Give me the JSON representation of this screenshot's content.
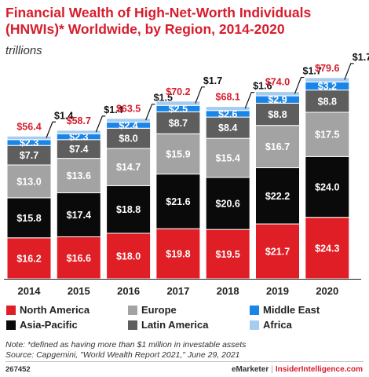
{
  "title": "Financial Wealth of High-Net-Worth Individuals (HNWIs)* Worldwide, by Region, 2014-2020",
  "subtitle": "trillions",
  "chart_data": {
    "type": "bar",
    "stacked": true,
    "categories": [
      "2014",
      "2015",
      "2016",
      "2017",
      "2018",
      "2019",
      "2020"
    ],
    "series": [
      {
        "name": "North America",
        "color": "#e01e25",
        "values": [
          16.2,
          16.6,
          18.0,
          19.8,
          19.5,
          21.7,
          24.3
        ],
        "labels": [
          "$16.2",
          "$16.6",
          "$18.0",
          "$19.8",
          "$19.5",
          "$21.7",
          "$24.3"
        ]
      },
      {
        "name": "Asia-Pacific",
        "color": "#0a0a0a",
        "values": [
          15.8,
          17.4,
          18.8,
          21.6,
          20.6,
          22.2,
          24.0
        ],
        "labels": [
          "$15.8",
          "$17.4",
          "$18.8",
          "$21.6",
          "$20.6",
          "$22.2",
          "$24.0"
        ]
      },
      {
        "name": "Europe",
        "color": "#a3a3a3",
        "values": [
          13.0,
          13.6,
          14.7,
          15.9,
          15.4,
          16.7,
          17.5
        ],
        "labels": [
          "$13.0",
          "$13.6",
          "$14.7",
          "$15.9",
          "$15.4",
          "$16.7",
          "$17.5"
        ]
      },
      {
        "name": "Latin America",
        "color": "#5e5e5e",
        "values": [
          7.7,
          7.4,
          8.0,
          8.7,
          8.4,
          8.8,
          8.8
        ],
        "labels": [
          "$7.7",
          "$7.4",
          "$8.0",
          "$8.7",
          "$8.4",
          "$8.8",
          "$8.8"
        ]
      },
      {
        "name": "Middle East",
        "color": "#1a85e8",
        "values": [
          2.3,
          2.3,
          2.4,
          2.5,
          2.6,
          2.9,
          3.2
        ],
        "labels": [
          "$2.3",
          "$2.3",
          "$2.4",
          "$2.5",
          "$2.6",
          "$2.9",
          "$3.2"
        ]
      },
      {
        "name": "Africa",
        "color": "#a6cdf0",
        "values": [
          1.4,
          1.4,
          1.5,
          1.7,
          1.6,
          1.7,
          1.7
        ],
        "labels": [
          "$1.4",
          "$1.4",
          "$1.5",
          "$1.7",
          "$1.6",
          "$1.7",
          "$1.7"
        ]
      }
    ],
    "totals": [
      56.4,
      58.7,
      63.5,
      70.2,
      68.1,
      74.0,
      79.6
    ],
    "total_labels": [
      "$56.4",
      "$58.7",
      "$63.5",
      "$70.2",
      "$68.1",
      "$74.0",
      "$79.6"
    ],
    "total_color": "#d71d2c",
    "ylim": [
      0,
      81
    ],
    "grid": false
  },
  "legend": [
    {
      "label": "North America",
      "color": "#e01e25"
    },
    {
      "label": "Europe",
      "color": "#a3a3a3"
    },
    {
      "label": "Middle East",
      "color": "#1a85e8"
    },
    {
      "label": "Asia-Pacific",
      "color": "#0a0a0a"
    },
    {
      "label": "Latin America",
      "color": "#5e5e5e"
    },
    {
      "label": "Africa",
      "color": "#a6cdf0"
    }
  ],
  "note_line1": "Note: *defined as having more than $1 million in investable assets",
  "note_line2": "Source: Capgemini, \"World Wealth Report 2021,\" June 29, 2021",
  "chart_id": "267452",
  "brand_left": "eMarketer",
  "brand_sep": "|",
  "brand_right": "InsiderIntelligence.com"
}
